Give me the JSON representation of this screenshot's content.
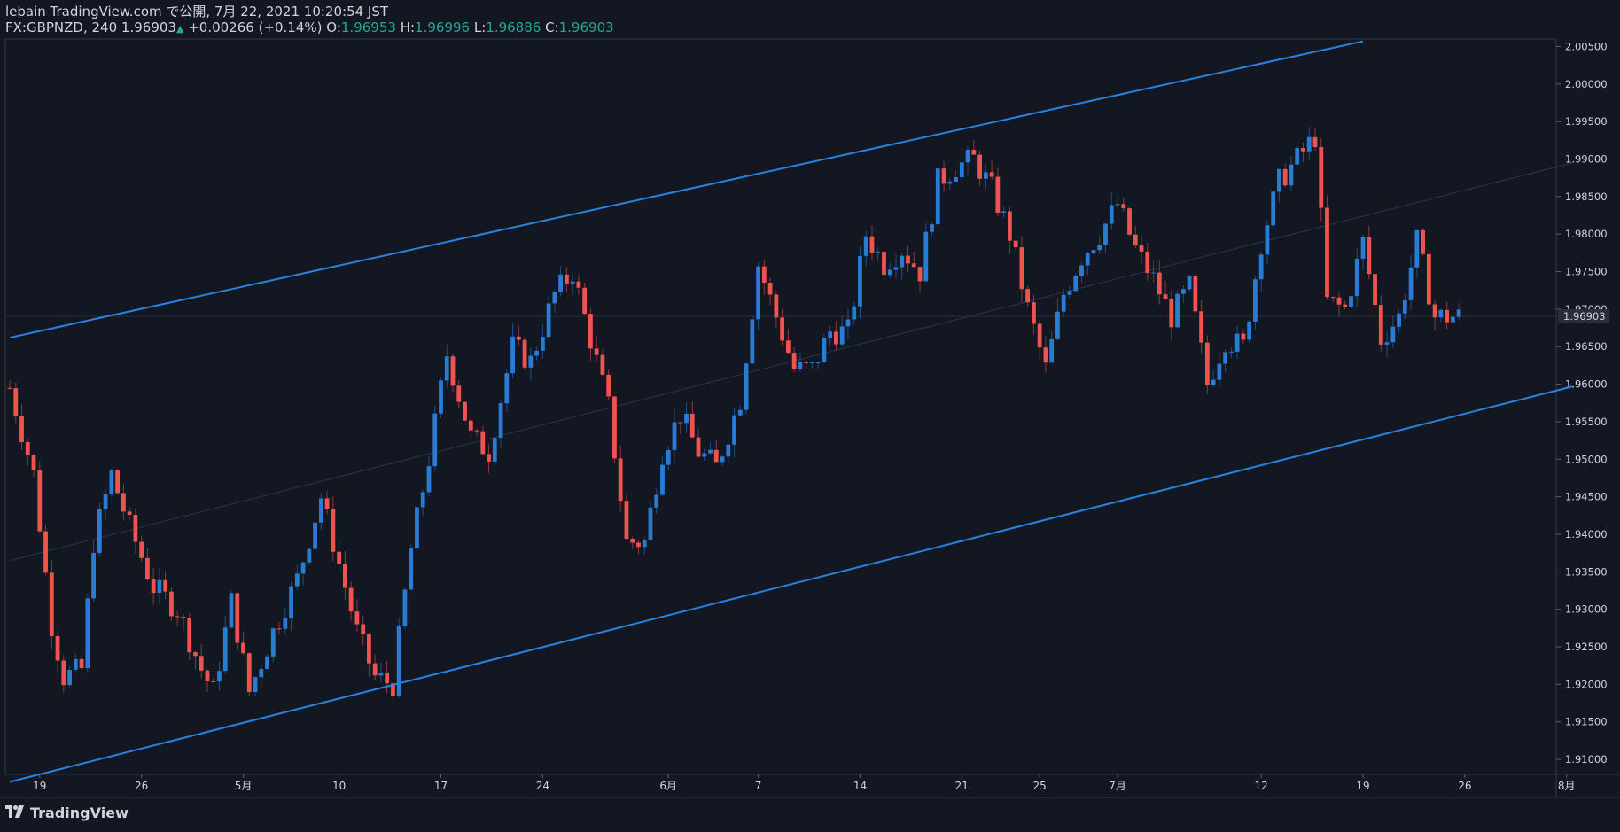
{
  "header": {
    "publish_line": "lebain TradingView.com で公開, 7月 22, 2021 10:20:54 JST",
    "symbol": "FX:GBPNZD, 240",
    "last": "1.96903",
    "change": "+0.00266 (+0.14%)",
    "o_label": "O:",
    "o_value": "1.96953",
    "h_label": "H:",
    "h_value": "1.96996",
    "l_label": "L:",
    "l_value": "1.96886",
    "c_label": "C:",
    "c_value": "1.96903"
  },
  "footer": {
    "brand": "TradingView",
    "logo_icon": "tradingview-logo-icon"
  },
  "colors": {
    "background": "#131722",
    "up": "#2a7bd4",
    "down": "#ef5350",
    "channel": "#2a82e0",
    "text": "#d1d4dc",
    "accent": "#26a69a"
  },
  "chart_data": {
    "type": "candlestick",
    "symbol": "FX:GBPNZD",
    "interval": "240",
    "ylim": [
      1.908,
      2.006
    ],
    "y_ticks": [
      "2.00500",
      "2.00000",
      "1.99500",
      "1.99000",
      "1.98500",
      "1.98000",
      "1.97500",
      "1.97000",
      "1.96500",
      "1.96000",
      "1.95500",
      "1.95000",
      "1.94500",
      "1.94000",
      "1.93500",
      "1.93000",
      "1.92500",
      "1.92000",
      "1.91500",
      "1.91000"
    ],
    "x_ticks": [
      "19",
      "26",
      "5月",
      "10",
      "17",
      "24",
      "6月",
      "7",
      "14",
      "21",
      "25",
      "7月",
      "12",
      "19",
      "26",
      "8月"
    ],
    "x_tick_index": [
      5,
      22,
      39,
      55,
      72,
      89,
      110,
      125,
      142,
      159,
      172,
      185,
      209,
      226,
      243,
      260
    ],
    "last_price_label": "1.96903",
    "close_path": [
      [
        0,
        1.9595
      ],
      [
        4,
        1.948
      ],
      [
        7,
        1.928
      ],
      [
        9,
        1.921
      ],
      [
        12,
        1.922
      ],
      [
        14,
        1.939
      ],
      [
        17,
        1.948
      ],
      [
        20,
        1.941
      ],
      [
        24,
        1.933
      ],
      [
        28,
        1.93
      ],
      [
        32,
        1.922
      ],
      [
        34,
        1.919
      ],
      [
        37,
        1.931
      ],
      [
        40,
        1.919
      ],
      [
        44,
        1.927
      ],
      [
        48,
        1.934
      ],
      [
        52,
        1.945
      ],
      [
        55,
        1.936
      ],
      [
        58,
        1.927
      ],
      [
        61,
        1.921
      ],
      [
        64,
        1.92
      ],
      [
        67,
        1.938
      ],
      [
        70,
        1.95
      ],
      [
        73,
        1.964
      ],
      [
        77,
        1.953
      ],
      [
        80,
        1.951
      ],
      [
        84,
        1.965
      ],
      [
        87,
        1.963
      ],
      [
        91,
        1.972
      ],
      [
        94,
        1.975
      ],
      [
        97,
        1.966
      ],
      [
        100,
        1.957
      ],
      [
        103,
        1.939
      ],
      [
        106,
        1.939
      ],
      [
        109,
        1.951
      ],
      [
        112,
        1.956
      ],
      [
        115,
        1.951
      ],
      [
        118,
        1.949
      ],
      [
        122,
        1.958
      ],
      [
        125,
        1.976
      ],
      [
        128,
        1.969
      ],
      [
        131,
        1.962
      ],
      [
        134,
        1.962
      ],
      [
        137,
        1.967
      ],
      [
        140,
        1.967
      ],
      [
        143,
        1.98
      ],
      [
        146,
        1.976
      ],
      [
        149,
        1.978
      ],
      [
        152,
        1.975
      ],
      [
        155,
        1.987
      ],
      [
        158,
        1.989
      ],
      [
        161,
        1.99
      ],
      [
        164,
        1.986
      ],
      [
        167,
        1.98
      ],
      [
        170,
        1.97
      ],
      [
        173,
        1.962
      ],
      [
        176,
        1.972
      ],
      [
        179,
        1.977
      ],
      [
        182,
        1.98
      ],
      [
        185,
        1.984
      ],
      [
        188,
        1.978
      ],
      [
        191,
        1.974
      ],
      [
        194,
        1.969
      ],
      [
        197,
        1.973
      ],
      [
        200,
        1.96
      ],
      [
        203,
        1.966
      ],
      [
        206,
        1.965
      ],
      [
        209,
        1.979
      ],
      [
        212,
        1.987
      ],
      [
        215,
        1.99
      ],
      [
        218,
        1.993
      ],
      [
        220,
        1.971
      ],
      [
        223,
        1.97
      ],
      [
        226,
        1.979
      ],
      [
        229,
        1.966
      ],
      [
        232,
        1.969
      ],
      [
        235,
        1.979
      ],
      [
        238,
        1.969
      ],
      [
        241,
        1.969
      ]
    ],
    "upper_channel": [
      [
        0,
        1.9662
      ],
      [
        226,
        2.0057
      ]
    ],
    "lower_channel": [
      [
        0,
        1.907
      ],
      [
        261,
        1.9597
      ]
    ],
    "midline": [
      [
        0,
        1.9365
      ],
      [
        261,
        1.9895
      ]
    ],
    "last_price_line": 1.96903
  }
}
